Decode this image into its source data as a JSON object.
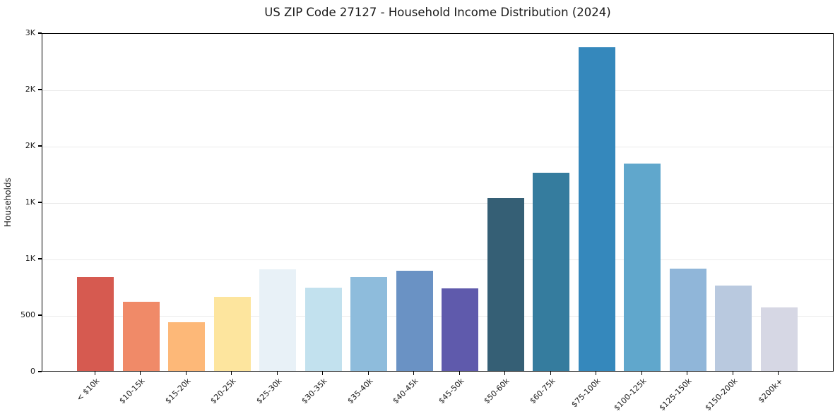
{
  "page": {
    "background_color": "#ffffff",
    "axis_color": "#000000",
    "gridline_color": "#ebebeb"
  },
  "chart_data": {
    "type": "bar",
    "title": "US ZIP Code 27127 - Household Income Distribution (2024)",
    "xlabel": "",
    "ylabel": "Households",
    "ylim": [
      0,
      3000
    ],
    "grid": "horizontal-light",
    "legend": "none",
    "categories": [
      "< $10k",
      "$10-15k",
      "$15-20k",
      "$20-25k",
      "$25-30k",
      "$30-35k",
      "$35-40k",
      "$40-45k",
      "$45-50k",
      "$50-60k",
      "$60-75k",
      "$75-100k",
      "$100-125k",
      "$125-150k",
      "$150-200k",
      "$200k+"
    ],
    "values": [
      830,
      612,
      433,
      657,
      900,
      737,
      833,
      886,
      731,
      1530,
      1756,
      2870,
      1839,
      904,
      758,
      562
    ],
    "bar_colors": [
      "#d65a50",
      "#f08a68",
      "#fdb878",
      "#fde59e",
      "#e8f1f7",
      "#c2e1ee",
      "#8ebcdc",
      "#6a92c4",
      "#5f5aac",
      "#355f75",
      "#357c9e",
      "#3588bc",
      "#60a7cc",
      "#90b6d9",
      "#b9c9df",
      "#d6d7e4"
    ],
    "y_ticks": [
      {
        "value": 0,
        "label": "0"
      },
      {
        "value": 500,
        "label": "500"
      },
      {
        "value": 1000,
        "label": "1K"
      },
      {
        "value": 1500,
        "label": "1K"
      },
      {
        "value": 2000,
        "label": "2K"
      },
      {
        "value": 2500,
        "label": "2K"
      },
      {
        "value": 3000,
        "label": "3K"
      }
    ]
  }
}
